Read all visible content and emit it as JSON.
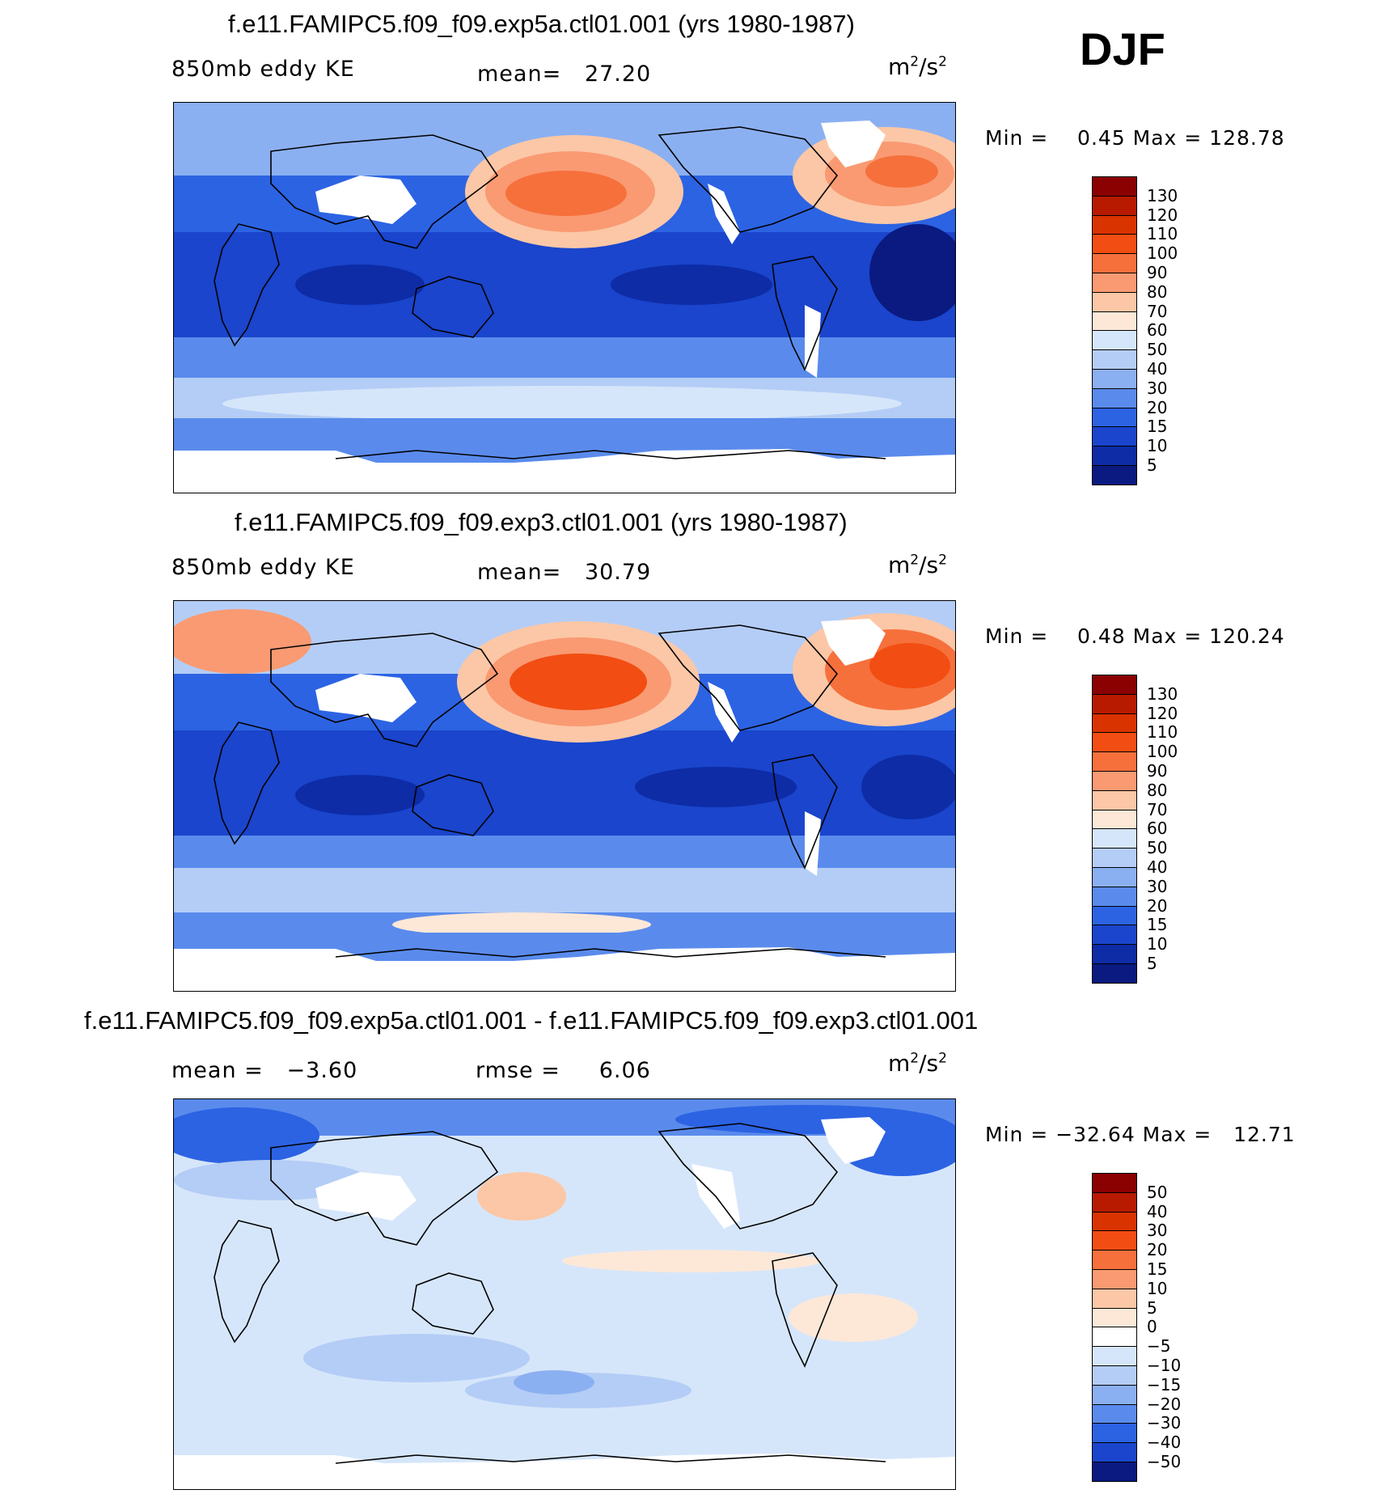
{
  "season": "DJF",
  "units_base": "m",
  "units_exp": "2",
  "units_mid": "/s",
  "chart_data": [
    {
      "type": "heatmap",
      "title": "f.e11.FAMIPC5.f09_f09.exp5a.ctl01.001 (yrs 1980-1987)",
      "left_label": "850mb eddy KE",
      "center_label": "mean=   27.20",
      "units": "m2/s2",
      "minmax": "Min =    0.45 Max = 128.78",
      "min": 0.45,
      "max": 128.78,
      "mean": 27.2,
      "colorbar": {
        "ticks": [
          "130",
          "120",
          "110",
          "100",
          "90",
          "80",
          "70",
          "60",
          "50",
          "40",
          "30",
          "20",
          "15",
          "10",
          "5"
        ],
        "colors": [
          "#8b0000",
          "#b81a00",
          "#d93300",
          "#f24d12",
          "#f6703c",
          "#f99a72",
          "#fcc7a6",
          "#fde8d8",
          "#d6e6fa",
          "#b4cdf6",
          "#8bb0f1",
          "#5a8bec",
          "#2c63e3",
          "#1a45cc",
          "#0d2ca6",
          "#0a1a80"
        ]
      },
      "features": [
        "North Pacific storm track maximum",
        "North Atlantic storm track maximum",
        "Southern Ocean storm track",
        "Tropical minimum"
      ]
    },
    {
      "type": "heatmap",
      "title": "f.e11.FAMIPC5.f09_f09.exp3.ctl01.001 (yrs 1980-1987)",
      "left_label": "850mb eddy KE",
      "center_label": "mean=   30.79",
      "units": "m2/s2",
      "minmax": "Min =    0.48 Max = 120.24",
      "min": 0.48,
      "max": 120.24,
      "mean": 30.79,
      "colorbar": {
        "ticks": [
          "130",
          "120",
          "110",
          "100",
          "90",
          "80",
          "70",
          "60",
          "50",
          "40",
          "30",
          "20",
          "15",
          "10",
          "5"
        ],
        "colors": [
          "#8b0000",
          "#b81a00",
          "#d93300",
          "#f24d12",
          "#f6703c",
          "#f99a72",
          "#fcc7a6",
          "#fde8d8",
          "#d6e6fa",
          "#b4cdf6",
          "#8bb0f1",
          "#5a8bec",
          "#2c63e3",
          "#1a45cc",
          "#0d2ca6",
          "#0a1a80"
        ]
      },
      "features": [
        "North Pacific storm track maximum",
        "North Atlantic storm track maximum",
        "Southern Ocean storm track",
        "Tropical minimum"
      ]
    },
    {
      "type": "heatmap",
      "title": "f.e11.FAMIPC5.f09_f09.exp5a.ctl01.001 - f.e11.FAMIPC5.f09_f09.exp3.ctl01.001",
      "left_label": "mean =   −3.60",
      "center_label": "rmse =     6.06",
      "units": "m2/s2",
      "minmax": "Min = −32.64 Max =   12.71",
      "min": -32.64,
      "max": 12.71,
      "mean": -3.6,
      "rmse": 6.06,
      "colorbar": {
        "ticks": [
          "50",
          "40",
          "30",
          "20",
          "15",
          "10",
          "5",
          "0",
          "−5",
          "−10",
          "−15",
          "−20",
          "−30",
          "−40",
          "−50"
        ],
        "colors": [
          "#8b0000",
          "#b81a00",
          "#d93300",
          "#f24d12",
          "#f6703c",
          "#f99a72",
          "#fcc7a6",
          "#fde8d8",
          "#ffffff",
          "#d6e6fa",
          "#b4cdf6",
          "#8bb0f1",
          "#5a8bec",
          "#2c63e3",
          "#1a45cc",
          "#0a1a80"
        ]
      },
      "features": [
        "Mostly slightly negative differences",
        "Largest negative differences at high northern latitudes"
      ]
    }
  ]
}
